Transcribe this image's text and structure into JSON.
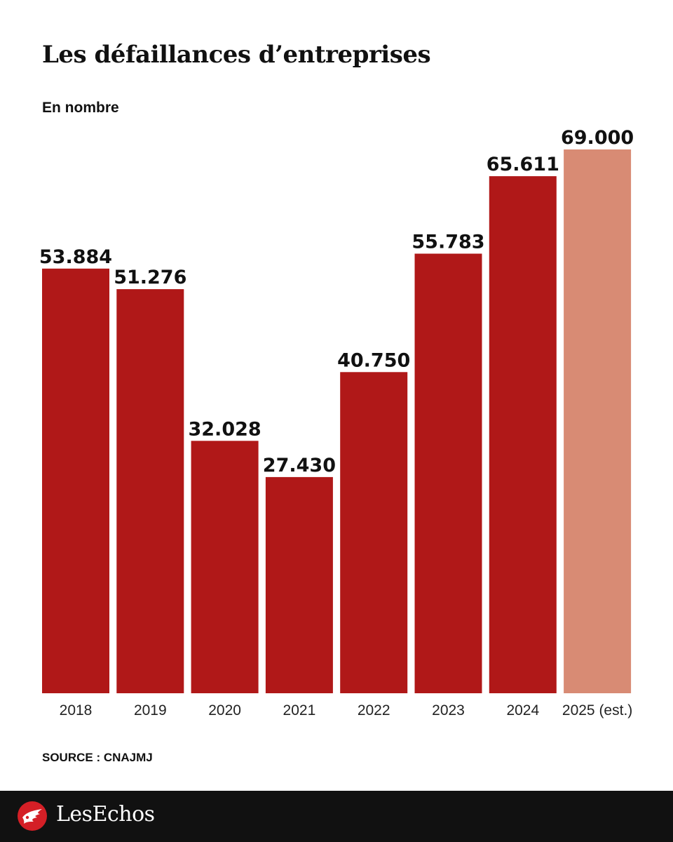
{
  "chart_data": {
    "type": "bar",
    "title": "Les défaillances d’entreprises",
    "subtitle": "En nombre",
    "categories": [
      "2018",
      "2019",
      "2020",
      "2021",
      "2022",
      "2023",
      "2024",
      "2025 (est.)"
    ],
    "values": [
      53884,
      51276,
      32028,
      27430,
      40750,
      55783,
      65611,
      69000
    ],
    "value_labels": [
      "53.884",
      "51.276",
      "32.028",
      "27.430",
      "40.750",
      "55.783",
      "65.611",
      "69.000"
    ],
    "ylim": [
      0,
      69000
    ],
    "grid": false,
    "colors": {
      "actual": "#b01818",
      "estimate": "#d88b74"
    },
    "estimate_index": 7
  },
  "source": "SOURCE : CNAJMJ",
  "footer": {
    "logo_text": "LesEchos",
    "logo_icon": "les-echos-winged-head-icon"
  }
}
